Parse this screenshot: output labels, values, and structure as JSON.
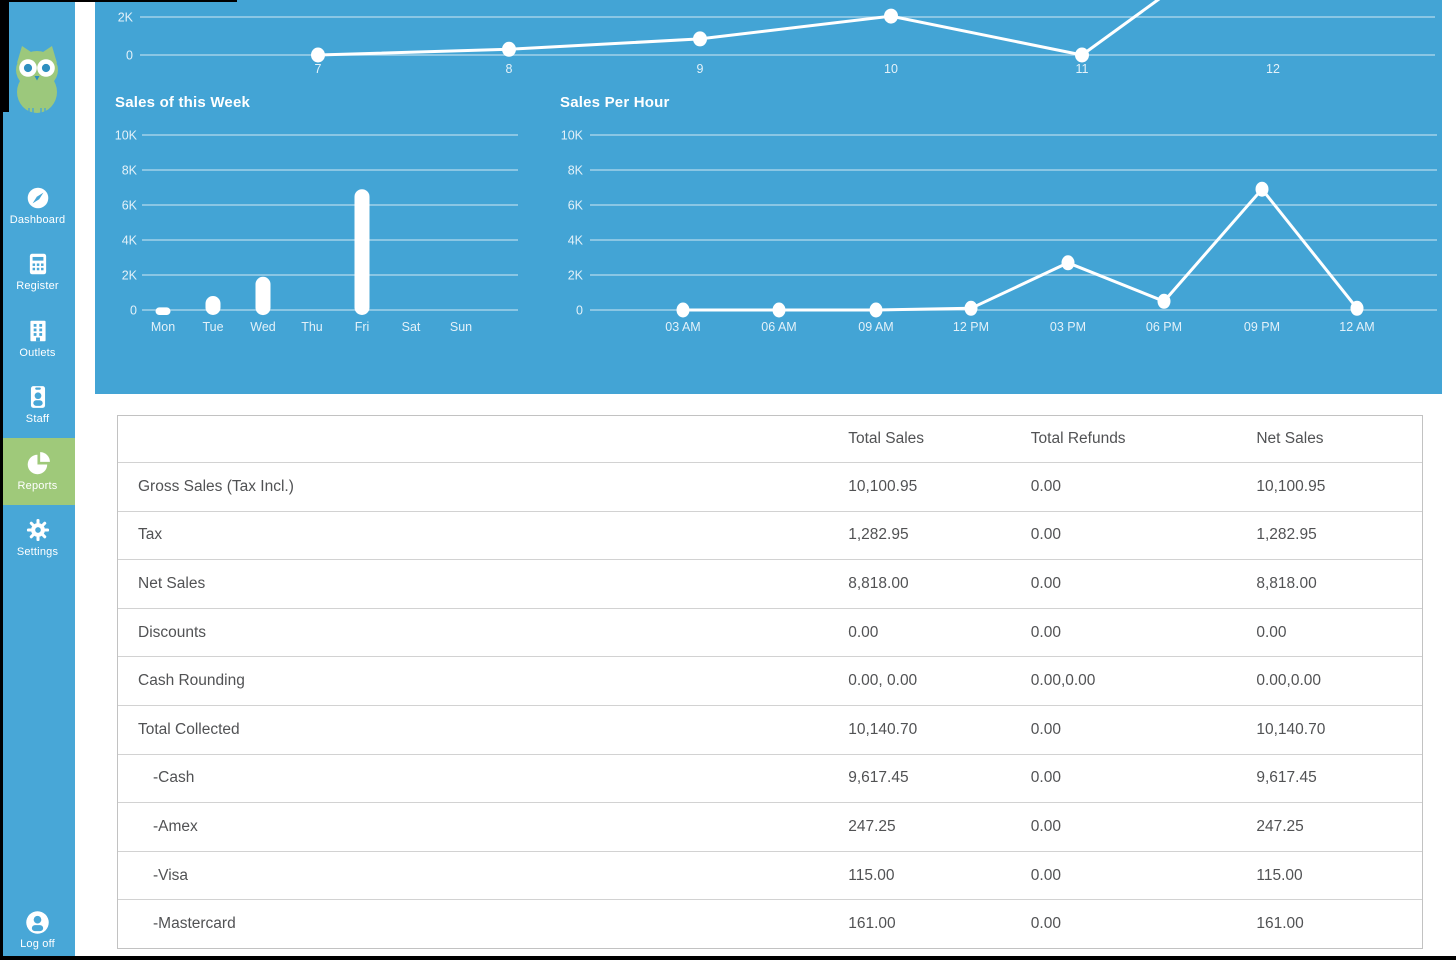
{
  "sidebar": {
    "items": [
      {
        "label": "Dashboard",
        "icon": "compass",
        "active": false
      },
      {
        "label": "Register",
        "icon": "calculator",
        "active": false
      },
      {
        "label": "Outlets",
        "icon": "building",
        "active": false
      },
      {
        "label": "Staff",
        "icon": "id-badge",
        "active": false
      },
      {
        "label": "Reports",
        "icon": "pie-chart",
        "active": true
      },
      {
        "label": "Settings",
        "icon": "gear",
        "active": false
      }
    ],
    "logoff": {
      "label": "Log off",
      "icon": "person-circle"
    }
  },
  "chart_data": [
    {
      "type": "line",
      "title": "",
      "x": [
        "7",
        "8",
        "9",
        "10",
        "11",
        "12"
      ],
      "values": [
        0,
        300,
        850,
        2050,
        0,
        7300
      ],
      "visible_yticks": [
        "0",
        "2K"
      ],
      "note": "line chart cropped by top of screen; point at 12 rises above visible area"
    },
    {
      "type": "bar",
      "title": "Sales of this Week",
      "categories": [
        "Mon",
        "Tue",
        "Wed",
        "Thu",
        "Fri",
        "Sat",
        "Sun"
      ],
      "values": [
        150,
        800,
        1900,
        0,
        6900,
        0,
        0
      ],
      "yticks": [
        "0",
        "2K",
        "4K",
        "6K",
        "8K",
        "10K"
      ],
      "ylim": [
        0,
        10000
      ],
      "xlabel": "",
      "ylabel": ""
    },
    {
      "type": "line",
      "title": "Sales Per Hour",
      "categories": [
        "03 AM",
        "06 AM",
        "09 AM",
        "12 PM",
        "03 PM",
        "06 PM",
        "09 PM",
        "12 AM"
      ],
      "values": [
        0,
        0,
        0,
        100,
        2700,
        500,
        6900,
        100
      ],
      "yticks": [
        "0",
        "2K",
        "4K",
        "6K",
        "8K",
        "10K"
      ],
      "ylim": [
        0,
        10000
      ],
      "xlabel": "",
      "ylabel": ""
    }
  ],
  "table": {
    "headers": [
      "",
      "Total Sales",
      "Total Refunds",
      "Net Sales"
    ],
    "rows": [
      {
        "label": "Gross Sales (Tax Incl.)",
        "indent": false,
        "values": [
          "10,100.95",
          "0.00",
          "10,100.95"
        ]
      },
      {
        "label": "Tax",
        "indent": false,
        "values": [
          "1,282.95",
          "0.00",
          "1,282.95"
        ]
      },
      {
        "label": "Net Sales",
        "indent": false,
        "values": [
          "8,818.00",
          "0.00",
          "8,818.00"
        ]
      },
      {
        "label": "Discounts",
        "indent": false,
        "values": [
          "0.00",
          "0.00",
          "0.00"
        ]
      },
      {
        "label": "Cash Rounding",
        "indent": false,
        "values": [
          "0.00, 0.00",
          "0.00,0.00",
          "0.00,0.00"
        ]
      },
      {
        "label": "Total Collected",
        "indent": false,
        "values": [
          "10,140.70",
          "0.00",
          "10,140.70"
        ]
      },
      {
        "label": "-Cash",
        "indent": true,
        "values": [
          "9,617.45",
          "0.00",
          "9,617.45"
        ]
      },
      {
        "label": "-Amex",
        "indent": true,
        "values": [
          "247.25",
          "0.00",
          "247.25"
        ]
      },
      {
        "label": "-Visa",
        "indent": true,
        "values": [
          "115.00",
          "0.00",
          "115.00"
        ]
      },
      {
        "label": "-Mastercard",
        "indent": true,
        "values": [
          "161.00",
          "0.00",
          "161.00"
        ]
      }
    ]
  },
  "colors": {
    "sidebar_blue": "#48a7d7",
    "panel_blue": "#43a4d5",
    "accent_green": "#9fc97a",
    "owl_green": "#9cc87c",
    "table_text": "#515254"
  }
}
